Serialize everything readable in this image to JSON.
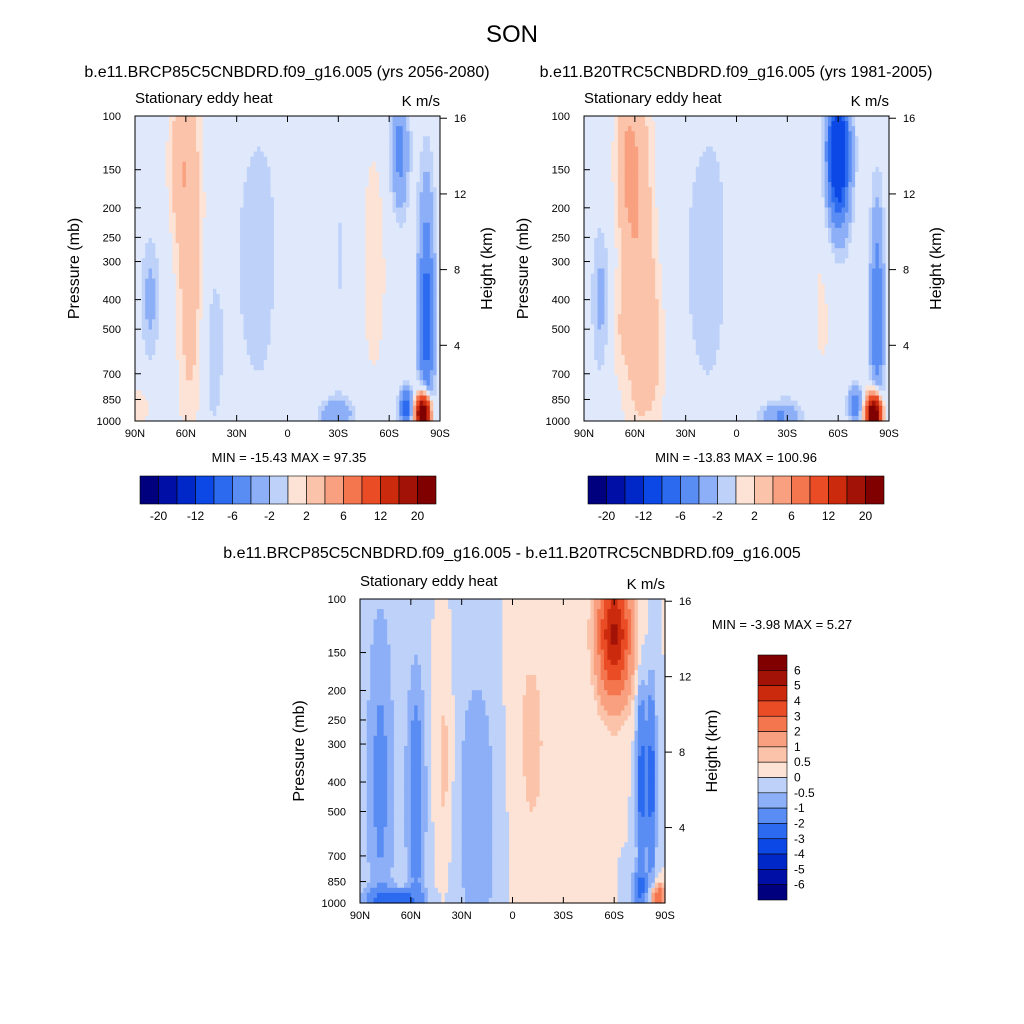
{
  "chart_data": {
    "type": "heatmap",
    "title": "SON",
    "palette": [
      "#00007f",
      "#0010a6",
      "#0028c8",
      "#0c48e6",
      "#2c6af0",
      "#5a8df4",
      "#8caff7",
      "#bdd1f9",
      "#dfe9fb",
      "#fde3d6",
      "#fbc3a9",
      "#f8a07f",
      "#f4764f",
      "#ea4c26",
      "#cc2a0d",
      "#a31206",
      "#800000"
    ],
    "panels": [
      {
        "id": "future",
        "title": "b.e11.BRCP85C5CNBDRD.f09_g16.005 (yrs 2056-2080)",
        "left_string": "Stationary eddy heat",
        "right_string": "K m/s",
        "ylabel": "Pressure (mb)",
        "y2label": "Height (km)",
        "x_ticks": [
          "90N",
          "60N",
          "30N",
          "0",
          "30S",
          "60S",
          "90S"
        ],
        "y_ticks": [
          "100",
          "150",
          "200",
          "250",
          "300",
          "400",
          "500",
          "700",
          "850",
          "1000"
        ],
        "height_ticks": [
          "16",
          "12",
          "8",
          "4"
        ],
        "stats": "MIN = -15.43  MAX = 97.35",
        "stats_min": -15.43,
        "stats_max": 97.35,
        "colorbar_labels": [
          "-20",
          "-12",
          "-6",
          "-2",
          "2",
          "6",
          "12",
          "20"
        ],
        "contour_levels": [
          -20,
          -16,
          -12,
          -8,
          -6,
          -4,
          -2,
          -1,
          1,
          2,
          4,
          6,
          8,
          12,
          16,
          20
        ],
        "features": [
          {
            "lat": 57,
            "p": 300,
            "dlat": 6,
            "dlogp": 1.0,
            "amp": 3.2
          },
          {
            "lat": 64,
            "p": 140,
            "dlat": 5,
            "dlogp": 0.4,
            "amp": 2.5
          },
          {
            "lat": 45,
            "p": 600,
            "dlat": 5,
            "dlogp": 0.5,
            "amp": -1.6
          },
          {
            "lat": 13,
            "p": 300,
            "dlat": 16,
            "dlogp": 1.0,
            "amp": -1.6
          },
          {
            "lat": -10,
            "p": 350,
            "dlat": 12,
            "dlogp": 1.0,
            "amp": 1.6
          },
          {
            "lat": -30,
            "p": 300,
            "dlat": 8,
            "dlogp": 1.0,
            "amp": -1.5
          },
          {
            "lat": -50,
            "p": 300,
            "dlat": 9,
            "dlogp": 1.0,
            "amp": 1.4
          },
          {
            "lat": 81,
            "p": 400,
            "dlat": 4,
            "dlogp": 0.35,
            "amp": -2.5
          },
          {
            "lat": 88,
            "p": 900,
            "dlat": 8,
            "dlogp": 0.15,
            "amp": 1.5
          },
          {
            "lat": -28,
            "p": 950,
            "dlat": 8,
            "dlogp": 0.08,
            "amp": -3.5
          },
          {
            "lat": -66,
            "p": 130,
            "dlat": 4,
            "dlogp": 0.35,
            "amp": -5
          },
          {
            "lat": -82,
            "p": 450,
            "dlat": 3.5,
            "dlogp": 0.7,
            "amp": -7
          },
          {
            "lat": -80,
            "p": 950,
            "dlat": 3,
            "dlogp": 0.1,
            "amp": 30
          },
          {
            "lat": -70,
            "p": 900,
            "dlat": 3,
            "dlogp": 0.1,
            "amp": -8
          }
        ]
      },
      {
        "id": "present",
        "title": "b.e11.B20TRC5CNBDRD.f09_g16.005 (yrs 1981-2005)",
        "left_string": "Stationary eddy heat",
        "right_string": "K m/s",
        "ylabel": "Pressure (mb)",
        "y2label": "Height (km)",
        "x_ticks": [
          "90N",
          "60N",
          "30N",
          "0",
          "30S",
          "60S",
          "90S"
        ],
        "y_ticks": [
          "100",
          "150",
          "200",
          "250",
          "300",
          "400",
          "500",
          "700",
          "850",
          "1000"
        ],
        "height_ticks": [
          "16",
          "12",
          "8",
          "4"
        ],
        "stats": "MIN = -13.83  MAX = 100.96",
        "stats_min": -13.83,
        "stats_max": 100.96,
        "colorbar_labels": [
          "-20",
          "-12",
          "-6",
          "-2",
          "2",
          "6",
          "12",
          "20"
        ],
        "contour_levels": [
          -20,
          -16,
          -12,
          -8,
          -6,
          -4,
          -2,
          -1,
          1,
          2,
          4,
          6,
          8,
          12,
          16,
          20
        ],
        "features": [
          {
            "lat": 58,
            "p": 280,
            "dlat": 7,
            "dlogp": 1.1,
            "amp": 3.6
          },
          {
            "lat": 65,
            "p": 140,
            "dlat": 5,
            "dlogp": 0.4,
            "amp": 2.8
          },
          {
            "lat": 47,
            "p": 600,
            "dlat": 5,
            "dlogp": 0.5,
            "amp": 1.6
          },
          {
            "lat": 13,
            "p": 300,
            "dlat": 16,
            "dlogp": 1.0,
            "amp": -1.6
          },
          {
            "lat": -10,
            "p": 350,
            "dlat": 12,
            "dlogp": 1.0,
            "amp": 1.4
          },
          {
            "lat": -30,
            "p": 300,
            "dlat": 8,
            "dlogp": 1.0,
            "amp": -1.3
          },
          {
            "lat": -50,
            "p": 400,
            "dlat": 8,
            "dlogp": 0.8,
            "amp": 1.2
          },
          {
            "lat": 80,
            "p": 400,
            "dlat": 4,
            "dlogp": 0.4,
            "amp": -2.5
          },
          {
            "lat": 70,
            "p": 500,
            "dlat": 4,
            "dlogp": 0.3,
            "amp": 1.2
          },
          {
            "lat": -25,
            "p": 960,
            "dlat": 9,
            "dlogp": 0.07,
            "amp": -4
          },
          {
            "lat": -60,
            "p": 135,
            "dlat": 5,
            "dlogp": 0.4,
            "amp": -12
          },
          {
            "lat": -83,
            "p": 450,
            "dlat": 3,
            "dlogp": 0.6,
            "amp": -6
          },
          {
            "lat": -81,
            "p": 950,
            "dlat": 3,
            "dlogp": 0.1,
            "amp": 30
          },
          {
            "lat": -70,
            "p": 880,
            "dlat": 3,
            "dlogp": 0.1,
            "amp": -6
          }
        ]
      },
      {
        "id": "difference",
        "title": "b.e11.BRCP85C5CNBDRD.f09_g16.005 - b.e11.B20TRC5CNBDRD.f09_g16.005",
        "left_string": "Stationary eddy heat",
        "right_string": "K m/s",
        "ylabel": "Pressure (mb)",
        "y2label": "Height (km)",
        "x_ticks": [
          "90N",
          "60N",
          "30N",
          "0",
          "30S",
          "60S",
          "90S"
        ],
        "y_ticks": [
          "100",
          "150",
          "200",
          "250",
          "300",
          "400",
          "500",
          "700",
          "850",
          "1000"
        ],
        "height_ticks": [
          "16",
          "12",
          "8",
          "4"
        ],
        "stats": "MIN =  -3.98  MAX =   5.27",
        "stats_min": -3.98,
        "stats_max": 5.27,
        "colorbar_labels": [
          "6",
          "5",
          "4",
          "3",
          "2",
          "1",
          "0.5",
          "0",
          "-0.5",
          "-1",
          "-2",
          "-3",
          "-4",
          "-5",
          "-6"
        ],
        "contour_levels": [
          -6,
          -5,
          -4,
          -3,
          -2,
          -1,
          -0.5,
          0,
          0.5,
          1,
          2,
          3,
          4,
          5,
          6
        ],
        "features": [
          {
            "lat": 78,
            "p": 400,
            "dlat": 6,
            "dlogp": 1.0,
            "amp": -1.2
          },
          {
            "lat": 57,
            "p": 450,
            "dlat": 4,
            "dlogp": 0.7,
            "amp": -1.6
          },
          {
            "lat": 40,
            "p": 350,
            "dlat": 4,
            "dlogp": 0.6,
            "amp": 0.8
          },
          {
            "lat": 20,
            "p": 500,
            "dlat": 12,
            "dlogp": 1.0,
            "amp": -0.8
          },
          {
            "lat": -10,
            "p": 300,
            "dlat": 12,
            "dlogp": 1.0,
            "amp": 0.6
          },
          {
            "lat": -60,
            "p": 130,
            "dlat": 7,
            "dlogp": 0.35,
            "amp": 5.2
          },
          {
            "lat": -76,
            "p": 400,
            "dlat": 2,
            "dlogp": 0.5,
            "amp": -2.5
          },
          {
            "lat": -82,
            "p": 400,
            "dlat": 2,
            "dlogp": 0.5,
            "amp": -2.5
          },
          {
            "lat": -86,
            "p": 950,
            "dlat": 3,
            "dlogp": 0.06,
            "amp": 3
          },
          {
            "lat": -75,
            "p": 900,
            "dlat": 3,
            "dlogp": 0.1,
            "amp": -2
          },
          {
            "lat": 70,
            "p": 970,
            "dlat": 10,
            "dlogp": 0.05,
            "amp": -2.5
          }
        ]
      }
    ]
  }
}
